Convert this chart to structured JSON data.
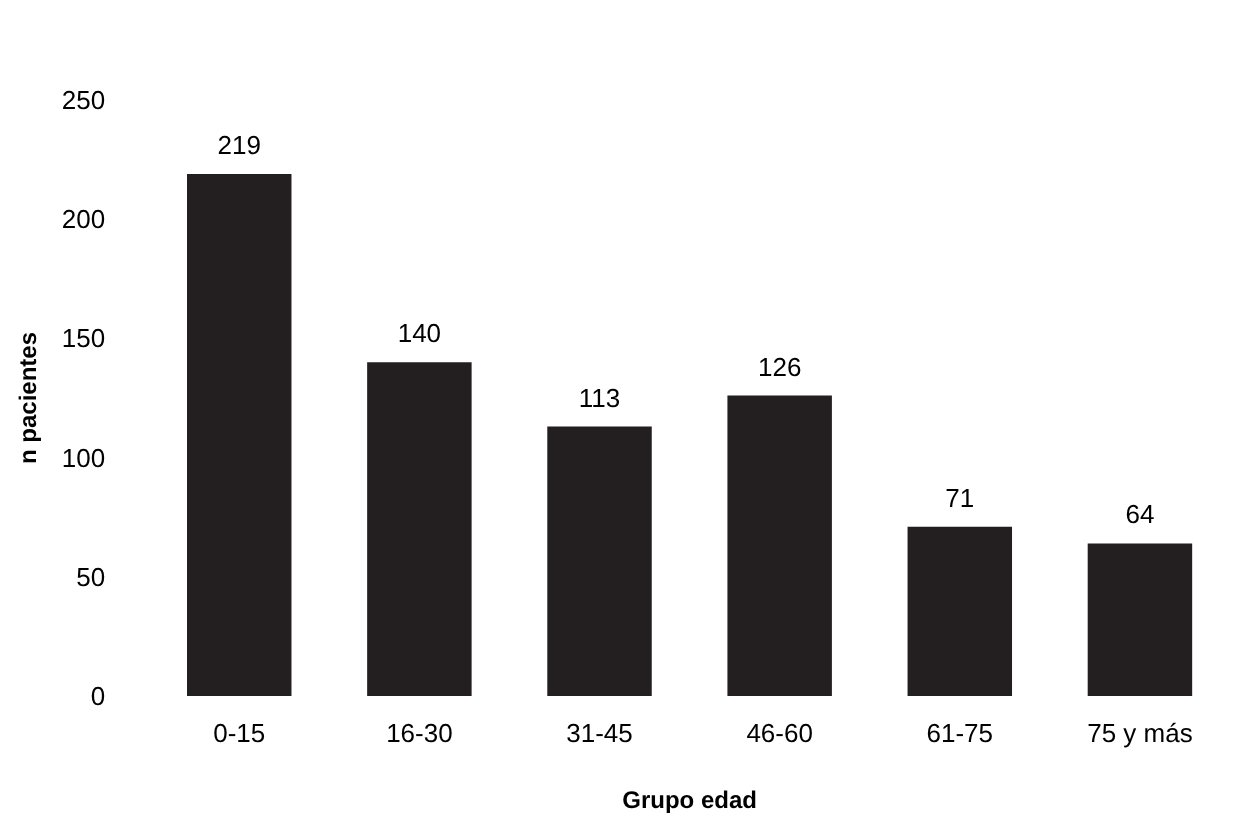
{
  "chart_data": {
    "type": "bar",
    "xlabel": "Grupo edad",
    "ylabel": "n pacientes",
    "categories": [
      "0-15",
      "16-30",
      "31-45",
      "46-60",
      "61-75",
      "75 y más"
    ],
    "values": [
      219,
      140,
      113,
      126,
      71,
      64
    ],
    "color": "#231f20",
    "ylim": [
      0,
      250
    ],
    "yticks": [
      0,
      50,
      100,
      150,
      200,
      250
    ],
    "grid": false,
    "data_labels": true
  }
}
